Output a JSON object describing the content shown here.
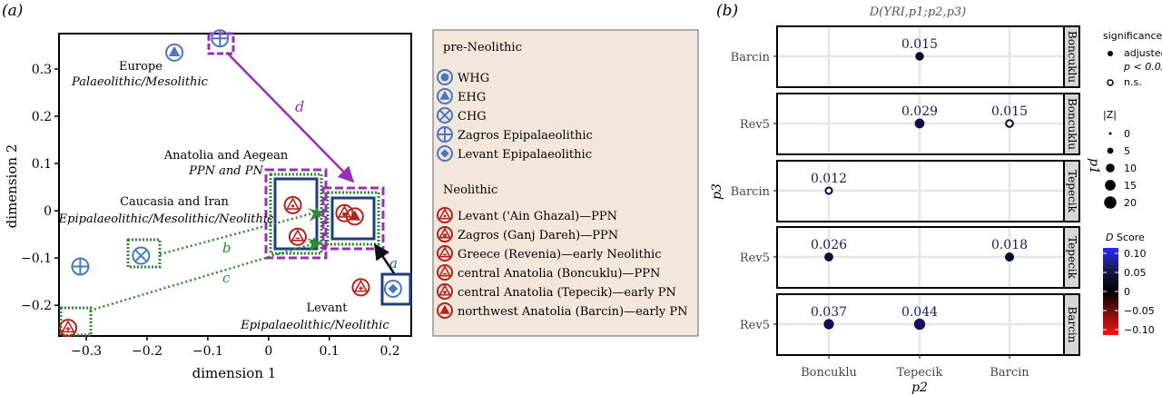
{
  "chart_data": [
    {
      "panel_label": "(a)",
      "type": "scatter",
      "xlabel": "dimension 1",
      "ylabel": "dimension 2",
      "xlim": [
        -0.345,
        0.235
      ],
      "ylim": [
        -0.265,
        0.375
      ],
      "x_ticks": [
        -0.3,
        -0.2,
        -0.1,
        0,
        0.1,
        0.2
      ],
      "x_tick_labels": [
        "−0.3",
        "−0.2",
        "−0.1",
        "0",
        "0.1",
        "0.2"
      ],
      "y_ticks": [
        -0.2,
        -0.1,
        0,
        0.1,
        0.2,
        0.3
      ],
      "y_tick_labels": [
        "−0.2",
        "−0.1",
        "0",
        "0.1",
        "0.2",
        "0.3"
      ],
      "points": [
        {
          "group": "EHG",
          "marker": "triangle-filled",
          "color": "#4a78c0",
          "x": -0.155,
          "y": 0.335
        },
        {
          "group": "Levant Epipalaeolithic",
          "marker": "circle-plus",
          "color": "#4a78c0",
          "x": -0.08,
          "y": 0.365
        },
        {
          "group": "CHG",
          "marker": "circle-x",
          "color": "#4a78c0",
          "x": -0.21,
          "y": -0.095
        },
        {
          "group": "Zagros Epipalaeolithic",
          "marker": "circle-plus",
          "color": "#4a78c0",
          "x": -0.31,
          "y": -0.118
        },
        {
          "group": "WHG",
          "marker": "circle-diamond",
          "color": "#4a78c0",
          "x": 0.205,
          "y": -0.165
        },
        {
          "group": "central Anatolia (Boncuklu)—PPN",
          "marker": "triangle-dot",
          "color": "#b0241c",
          "x": 0.04,
          "y": 0.012
        },
        {
          "group": "Greece (Revenia)—early Neolithic",
          "marker": "triangle-open",
          "color": "#b0241c",
          "x": 0.048,
          "y": -0.055
        },
        {
          "group": "Zagros (Ganj Dareh)—PPN",
          "marker": "triangle-square",
          "color": "#b0241c",
          "x": 0.125,
          "y": -0.005
        },
        {
          "group": "northwest Anatolia (Barcin)—early PN",
          "marker": "triangle-filled",
          "color": "#b0241c",
          "x": 0.142,
          "y": -0.012
        },
        {
          "group": "Levant ('Ain Ghazal)—PPN",
          "marker": "triangle-plus",
          "color": "#b0241c",
          "x": 0.152,
          "y": -0.162
        },
        {
          "group": "central Anatolia (Tepecik)—early PN",
          "marker": "triangle-plus",
          "color": "#b0241c",
          "x": -0.33,
          "y": -0.248
        }
      ],
      "region_labels": [
        {
          "line1": "Europe",
          "line2": "Palaeolithic/Mesolithic"
        },
        {
          "line1": "Anatolia and Aegean",
          "line2": "PPN and PN"
        },
        {
          "line1": "Caucasia and Iran",
          "line2": "Epipalaeolithic/Mesolithic/Neolithic"
        },
        {
          "line1": "Levant",
          "line2": "Epipalaeolithic/Neolithic"
        }
      ],
      "arrow_labels": {
        "a": "a",
        "b": "b",
        "c": "c",
        "d": "d"
      },
      "colors": {
        "pre_neolithic": "#4a78c0",
        "neolithic": "#b0241c",
        "path_d": "#9b2fb4",
        "path_bc": "#2e8b2e",
        "path_a": "#1f3f7a"
      },
      "legend": {
        "pre_title": "pre-Neolithic",
        "pre_items": [
          "WHG",
          "EHG",
          "CHG",
          "Zagros Epipalaeolithic",
          "Levant Epipalaeolithic"
        ],
        "neo_title": "Neolithic",
        "neo_items": [
          "Levant ('Ain Ghazal)—PPN",
          "Zagros (Ganj Dareh)—PPN",
          "Greece (Revenia)—early Neolithic",
          "central Anatolia (Boncuklu)—PPN",
          "central Anatolia (Tepecik)—early PN",
          "northwest Anatolia (Barcin)—early PN"
        ]
      }
    },
    {
      "panel_label": "(b)",
      "type": "scatter",
      "title": "D(YRI,p1;p2,p3)",
      "xlabel": "p2",
      "ylabel": "p3",
      "facet_label": "p1",
      "categories": [
        "Boncuklu",
        "Tepecik",
        "Barcin"
      ],
      "facets": [
        {
          "p1": "Boncuklu",
          "p3": "Barcin",
          "points": [
            {
              "p2": "Tepecik",
              "D": 0.015,
              "absZ": 4.6,
              "significant": true
            }
          ]
        },
        {
          "p1": "Boncuklu",
          "p3": "Rev5",
          "points": [
            {
              "p2": "Tepecik",
              "D": 0.029,
              "absZ": 6.0,
              "significant": true
            },
            {
              "p2": "Barcin",
              "D": 0.015,
              "absZ": 4.4,
              "significant": false
            }
          ]
        },
        {
          "p1": "Tepecik",
          "p3": "Barcin",
          "points": [
            {
              "p2": "Boncuklu",
              "D": 0.012,
              "absZ": 3.8,
              "significant": false
            }
          ]
        },
        {
          "p1": "Tepecik",
          "p3": "Rev5",
          "points": [
            {
              "p2": "Boncuklu",
              "D": 0.026,
              "absZ": 5.0,
              "significant": true
            },
            {
              "p2": "Barcin",
              "D": 0.018,
              "absZ": 5.3,
              "significant": true
            }
          ]
        },
        {
          "p1": "Barcin",
          "p3": "Rev5",
          "points": [
            {
              "p2": "Boncuklu",
              "D": 0.037,
              "absZ": 6.6,
              "significant": true
            },
            {
              "p2": "Tepecik",
              "D": 0.044,
              "absZ": 8.2,
              "significant": true
            }
          ]
        }
      ],
      "significance_legend": {
        "title": "significance",
        "item1a": "adjusted",
        "item1b": "p < 0.05",
        "item2": "n.s."
      },
      "z_legend": {
        "title": "|Z|",
        "values": [
          0,
          5,
          10,
          15,
          20
        ]
      },
      "color_legend": {
        "title": "Score",
        "title_prefix": "D",
        "ticks": [
          0.1,
          0.05,
          0,
          -0.05,
          -0.1
        ],
        "tick_labels": [
          "0.10",
          "0.05",
          "0",
          "−0.05",
          "−0.10"
        ],
        "colors": [
          "#2a2aff",
          "#1a1a50",
          "#000000",
          "#801010",
          "#ff1010"
        ]
      }
    }
  ]
}
